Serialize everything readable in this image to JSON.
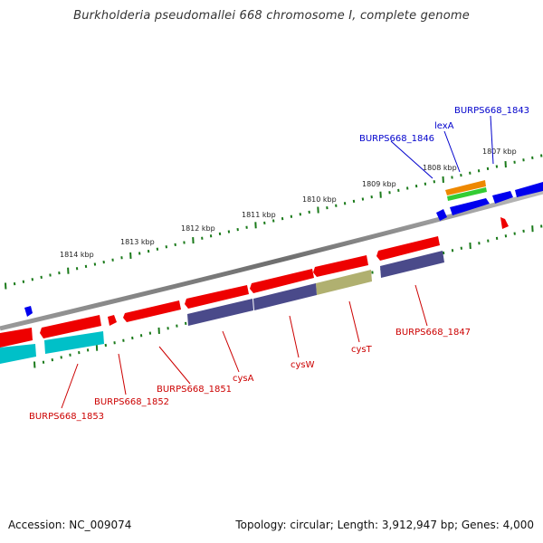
{
  "title": "Burkholderia pseudomallei 668 chromosome I, complete genome",
  "footer": {
    "accession": "Accession: NC_009074",
    "summary": "Topology: circular; Length: 3,912,947 bp; Genes: 4,000"
  },
  "kbp_labels": [
    "1807 kbp",
    "1808 kbp",
    "1809 kbp",
    "1810 kbp",
    "1811 kbp",
    "1812 kbp",
    "1813 kbp",
    "1814 kbp"
  ],
  "gene_labels_forward": [
    "BURPS668_1843",
    "lexA",
    "BURPS668_1846"
  ],
  "gene_labels_reverse": [
    "BURPS668_1847",
    "cysT",
    "cysW",
    "cysA",
    "BURPS668_1851",
    "BURPS668_1852",
    "BURPS668_1853"
  ],
  "colors": {
    "forward_label": "#0000cc",
    "reverse_label": "#cc0000",
    "tick": "#1a7a1a",
    "backbone": "#7a7a7a",
    "red_gene": "#ee0000",
    "blue_gene": "#0000ee",
    "cyan_gene": "#00c0c8",
    "slate_gene": "#4a4a8a",
    "olive_gene": "#b0b070",
    "orange_gene": "#ee8800",
    "green_gene": "#33cc33"
  }
}
